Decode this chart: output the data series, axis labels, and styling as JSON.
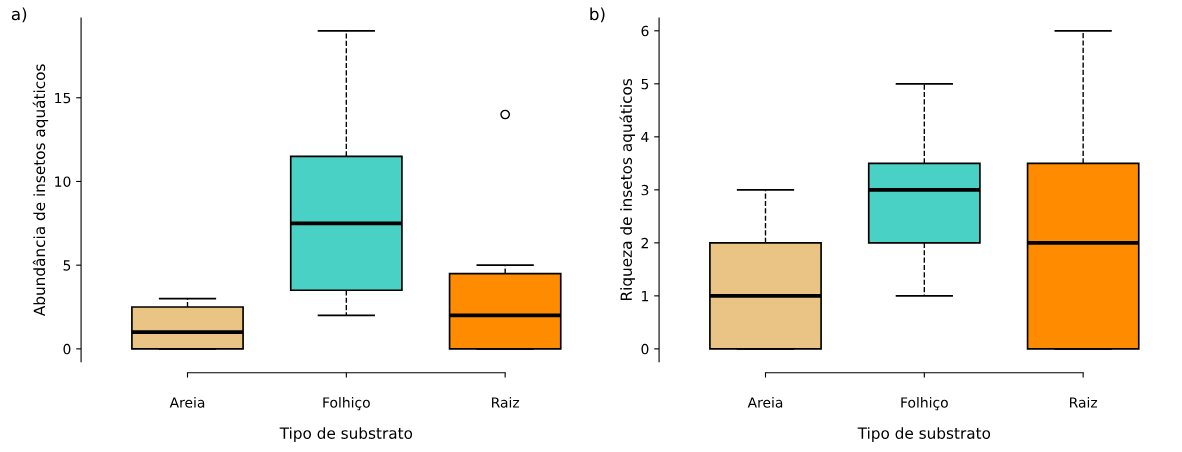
{
  "chart_data": [
    {
      "type": "box",
      "title": "a)",
      "xlabel": "Tipo de substrato",
      "ylabel": "Abundância de insetos aquáticos",
      "categories": [
        "Areia",
        "Folhiço",
        "Raiz"
      ],
      "colors": [
        "#eac484",
        "#48d1c4",
        "#ff8c00"
      ],
      "boxes": [
        {
          "low": 0,
          "q1": 0,
          "median": 1,
          "q3": 2.5,
          "high": 3
        },
        {
          "low": 2,
          "q1": 3.5,
          "median": 7.5,
          "q3": 11.5,
          "high": 19
        },
        {
          "low": 0,
          "q1": 0,
          "median": 2,
          "q3": 4.5,
          "high": 5,
          "outliers": [
            14
          ]
        }
      ],
      "ylim": [
        -0.76,
        19.76
      ],
      "yticks": [
        0,
        5,
        10,
        15
      ],
      "grid": false
    },
    {
      "type": "box",
      "title": "b)",
      "xlabel": "Tipo de substrato",
      "ylabel": "Riqueza de insetos aquáticos",
      "categories": [
        "Areia",
        "Folhiço",
        "Raiz"
      ],
      "colors": [
        "#eac484",
        "#48d1c4",
        "#ff8c00"
      ],
      "boxes": [
        {
          "low": 0,
          "q1": 0,
          "median": 1,
          "q3": 2,
          "high": 3
        },
        {
          "low": 1,
          "q1": 2,
          "median": 3,
          "q3": 3.5,
          "high": 5
        },
        {
          "low": 0,
          "q1": 0,
          "median": 2,
          "q3": 3.5,
          "high": 6
        }
      ],
      "ylim": [
        -0.24,
        6.24
      ],
      "yticks": [
        0,
        1,
        2,
        3,
        4,
        5,
        6
      ],
      "grid": false
    }
  ]
}
